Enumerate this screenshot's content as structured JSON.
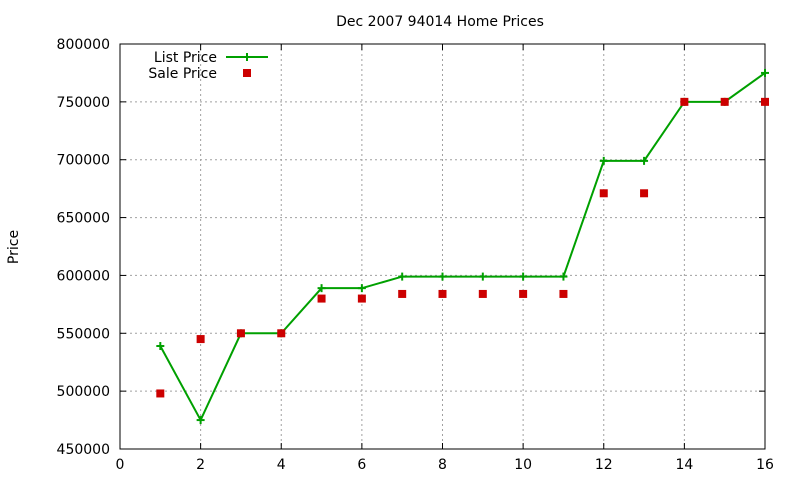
{
  "chart_data": {
    "type": "line",
    "title": "Dec 2007 94014 Home Prices",
    "xlabel": "",
    "ylabel": "Price",
    "xlim": [
      0,
      16
    ],
    "ylim": [
      450000,
      800000
    ],
    "xticks": [
      0,
      2,
      4,
      6,
      8,
      10,
      12,
      14,
      16
    ],
    "xtick_labels": [
      "0",
      "2",
      "4",
      "6",
      "8",
      "10",
      "12",
      "14",
      "16"
    ],
    "yticks": [
      450000,
      500000,
      550000,
      600000,
      650000,
      700000,
      750000,
      800000
    ],
    "ytick_labels": [
      "450000",
      "500000",
      "550000",
      "600000",
      "650000",
      "700000",
      "750000",
      "800000"
    ],
    "grid": true,
    "legend": "top-left",
    "x": [
      1,
      2,
      3,
      4,
      5,
      6,
      7,
      8,
      9,
      10,
      11,
      12,
      13,
      14,
      15,
      16
    ],
    "series": [
      {
        "name": "List Price",
        "style": "linespoints",
        "marker": "plus",
        "color": "#00a000",
        "values": [
          539000,
          475000,
          550000,
          550000,
          589000,
          589000,
          599000,
          599000,
          599000,
          599000,
          599000,
          699000,
          699000,
          750000,
          750000,
          775000
        ]
      },
      {
        "name": "Sale Price",
        "style": "points",
        "marker": "square",
        "color": "#cc0000",
        "values": [
          498000,
          545000,
          550000,
          550000,
          580000,
          580000,
          584000,
          584000,
          584000,
          584000,
          584000,
          671000,
          671000,
          750000,
          750000,
          750000
        ]
      }
    ]
  }
}
